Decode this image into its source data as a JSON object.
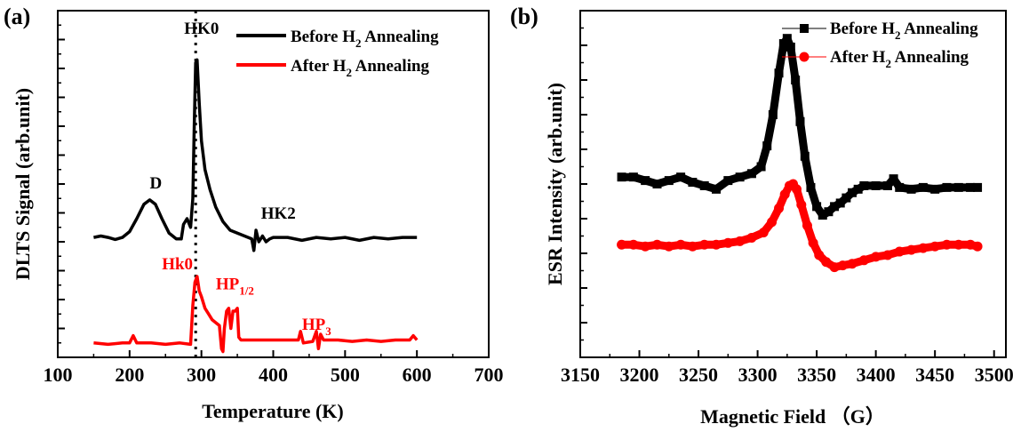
{
  "chart_data": [
    {
      "panel_label": "(a)",
      "type": "line",
      "xlabel": "Temperature (K)",
      "ylabel": "DLTS Signal  (arb.unit)",
      "xlim": [
        100,
        700
      ],
      "xticks": [
        "100",
        "200",
        "300",
        "400",
        "500",
        "600",
        "700"
      ],
      "ylim": [
        0,
        12
      ],
      "y_tick_labels_shown": false,
      "grid": false,
      "legend_position": "top-right",
      "series": [
        {
          "name": "Before H2 Annealing",
          "legend_main": "Before H",
          "legend_sub": "2",
          "legend_tail": " Annealing",
          "color": "#000000",
          "points": [
            [
              150,
              4.15
            ],
            [
              160,
              4.2
            ],
            [
              170,
              4.15
            ],
            [
              180,
              4.08
            ],
            [
              190,
              4.15
            ],
            [
              200,
              4.35
            ],
            [
              210,
              4.8
            ],
            [
              220,
              5.3
            ],
            [
              228,
              5.45
            ],
            [
              236,
              5.3
            ],
            [
              245,
              4.8
            ],
            [
              255,
              4.3
            ],
            [
              265,
              4.1
            ],
            [
              272,
              4.1
            ],
            [
              275,
              4.6
            ],
            [
              280,
              4.8
            ],
            [
              285,
              4.5
            ],
            [
              288,
              5.5
            ],
            [
              290,
              8.0
            ],
            [
              292,
              10.2
            ],
            [
              294,
              10.3
            ],
            [
              297,
              8.8
            ],
            [
              300,
              7.5
            ],
            [
              305,
              6.5
            ],
            [
              312,
              5.8
            ],
            [
              320,
              5.2
            ],
            [
              330,
              4.7
            ],
            [
              340,
              4.4
            ],
            [
              350,
              4.3
            ],
            [
              360,
              4.2
            ],
            [
              370,
              4.1
            ],
            [
              373,
              3.7
            ],
            [
              376,
              4.4
            ],
            [
              380,
              4.0
            ],
            [
              385,
              4.2
            ],
            [
              390,
              4.0
            ],
            [
              395,
              4.1
            ],
            [
              400,
              4.15
            ],
            [
              420,
              4.15
            ],
            [
              440,
              4.05
            ],
            [
              460,
              4.15
            ],
            [
              480,
              4.1
            ],
            [
              500,
              4.15
            ],
            [
              520,
              4.05
            ],
            [
              540,
              4.15
            ],
            [
              560,
              4.1
            ],
            [
              580,
              4.15
            ],
            [
              600,
              4.15
            ]
          ]
        },
        {
          "name": "After H2 Annealing",
          "legend_main": "After H",
          "legend_sub": "2",
          "legend_tail": " Annealing",
          "color": "#ff0000",
          "points": [
            [
              150,
              0.5
            ],
            [
              170,
              0.45
            ],
            [
              190,
              0.5
            ],
            [
              200,
              0.5
            ],
            [
              205,
              0.75
            ],
            [
              210,
              0.5
            ],
            [
              230,
              0.5
            ],
            [
              250,
              0.45
            ],
            [
              270,
              0.5
            ],
            [
              285,
              0.45
            ],
            [
              288,
              1.8
            ],
            [
              291,
              2.6
            ],
            [
              294,
              2.8
            ],
            [
              297,
              2.3
            ],
            [
              300,
              2.1
            ],
            [
              305,
              1.7
            ],
            [
              310,
              1.5
            ],
            [
              315,
              1.3
            ],
            [
              320,
              1.2
            ],
            [
              325,
              1.1
            ],
            [
              328,
              0.3
            ],
            [
              330,
              0.2
            ],
            [
              332,
              1.0
            ],
            [
              335,
              1.6
            ],
            [
              338,
              1.7
            ],
            [
              341,
              1.0
            ],
            [
              344,
              1.6
            ],
            [
              347,
              1.6
            ],
            [
              350,
              1.7
            ],
            [
              352,
              0.7
            ],
            [
              355,
              0.6
            ],
            [
              360,
              0.6
            ],
            [
              380,
              0.6
            ],
            [
              400,
              0.6
            ],
            [
              420,
              0.6
            ],
            [
              435,
              0.6
            ],
            [
              438,
              0.9
            ],
            [
              442,
              0.5
            ],
            [
              455,
              0.55
            ],
            [
              460,
              0.9
            ],
            [
              463,
              0.3
            ],
            [
              466,
              0.8
            ],
            [
              470,
              0.6
            ],
            [
              490,
              0.6
            ],
            [
              510,
              0.55
            ],
            [
              530,
              0.6
            ],
            [
              550,
              0.55
            ],
            [
              570,
              0.6
            ],
            [
              590,
              0.6
            ],
            [
              595,
              0.75
            ],
            [
              600,
              0.6
            ]
          ]
        }
      ],
      "reference_line": {
        "x": 292,
        "style": "dotted"
      },
      "annotations": [
        {
          "text": "HK0",
          "x": 276,
          "y": 11.2,
          "color": "#000000"
        },
        {
          "text": "D",
          "x": 228,
          "y": 5.85,
          "color": "#000000"
        },
        {
          "text": "HK2",
          "x": 383,
          "y": 4.8,
          "color": "#000000"
        },
        {
          "text": "Hk0",
          "x": 245,
          "y": 3.05,
          "color": "#ff0000"
        },
        {
          "text": "HP",
          "sub": "1/2",
          "x": 320,
          "y": 2.35,
          "color": "#ff0000"
        },
        {
          "text": "HP",
          "sub": "3",
          "x": 440,
          "y": 0.95,
          "color": "#ff0000"
        }
      ]
    },
    {
      "panel_label": "(b)",
      "type": "scatter",
      "xlabel": "Magnetic Field （G）",
      "ylabel": "ESR Intensity (arb.unit)",
      "xlim": [
        3150,
        3510
      ],
      "xticks": [
        "3150",
        "3200",
        "3250",
        "3300",
        "3350",
        "3400",
        "3450",
        "3500"
      ],
      "ylim": [
        0,
        10
      ],
      "y_tick_labels_shown": false,
      "grid": false,
      "legend_position": "top-right",
      "series": [
        {
          "name": "Before H2 Annealing",
          "legend_main": "Before H",
          "legend_sub": "2",
          "legend_tail": " Annealing",
          "color": "#000000",
          "marker": "square",
          "points": [
            [
              3185,
              5.2
            ],
            [
              3195,
              5.2
            ],
            [
              3205,
              5.1
            ],
            [
              3215,
              5.0
            ],
            [
              3225,
              5.1
            ],
            [
              3235,
              5.2
            ],
            [
              3245,
              5.05
            ],
            [
              3255,
              4.95
            ],
            [
              3265,
              4.85
            ],
            [
              3275,
              5.1
            ],
            [
              3285,
              5.2
            ],
            [
              3295,
              5.3
            ],
            [
              3303,
              5.5
            ],
            [
              3308,
              6.1
            ],
            [
              3313,
              7.0
            ],
            [
              3318,
              8.2
            ],
            [
              3322,
              9.05
            ],
            [
              3325,
              9.2
            ],
            [
              3328,
              8.95
            ],
            [
              3332,
              8.0
            ],
            [
              3336,
              6.8
            ],
            [
              3340,
              5.8
            ],
            [
              3345,
              4.9
            ],
            [
              3350,
              4.35
            ],
            [
              3355,
              4.1
            ],
            [
              3360,
              4.2
            ],
            [
              3365,
              4.35
            ],
            [
              3370,
              4.45
            ],
            [
              3375,
              4.6
            ],
            [
              3380,
              4.75
            ],
            [
              3385,
              4.85
            ],
            [
              3390,
              4.95
            ],
            [
              3400,
              4.95
            ],
            [
              3410,
              4.95
            ],
            [
              3415,
              5.15
            ],
            [
              3420,
              4.9
            ],
            [
              3430,
              4.85
            ],
            [
              3440,
              4.9
            ],
            [
              3450,
              4.85
            ],
            [
              3460,
              4.9
            ],
            [
              3470,
              4.9
            ],
            [
              3480,
              4.9
            ],
            [
              3486,
              4.9
            ]
          ]
        },
        {
          "name": "After  H2 Annealing",
          "legend_main": "After  H",
          "legend_sub": "2",
          "legend_tail": " Annealing",
          "color": "#ff0000",
          "marker": "circle",
          "points": [
            [
              3185,
              3.25
            ],
            [
              3195,
              3.25
            ],
            [
              3205,
              3.2
            ],
            [
              3215,
              3.25
            ],
            [
              3225,
              3.2
            ],
            [
              3235,
              3.25
            ],
            [
              3245,
              3.2
            ],
            [
              3255,
              3.25
            ],
            [
              3265,
              3.25
            ],
            [
              3275,
              3.3
            ],
            [
              3285,
              3.35
            ],
            [
              3295,
              3.45
            ],
            [
              3305,
              3.6
            ],
            [
              3312,
              3.9
            ],
            [
              3318,
              4.3
            ],
            [
              3323,
              4.7
            ],
            [
              3327,
              4.95
            ],
            [
              3330,
              5.0
            ],
            [
              3333,
              4.85
            ],
            [
              3337,
              4.4
            ],
            [
              3342,
              3.8
            ],
            [
              3347,
              3.3
            ],
            [
              3352,
              2.95
            ],
            [
              3358,
              2.75
            ],
            [
              3365,
              2.6
            ],
            [
              3372,
              2.65
            ],
            [
              3380,
              2.7
            ],
            [
              3390,
              2.8
            ],
            [
              3400,
              2.9
            ],
            [
              3410,
              2.95
            ],
            [
              3420,
              3.05
            ],
            [
              3430,
              3.1
            ],
            [
              3440,
              3.15
            ],
            [
              3450,
              3.2
            ],
            [
              3460,
              3.25
            ],
            [
              3470,
              3.25
            ],
            [
              3480,
              3.25
            ],
            [
              3486,
              3.2
            ]
          ]
        }
      ]
    }
  ]
}
